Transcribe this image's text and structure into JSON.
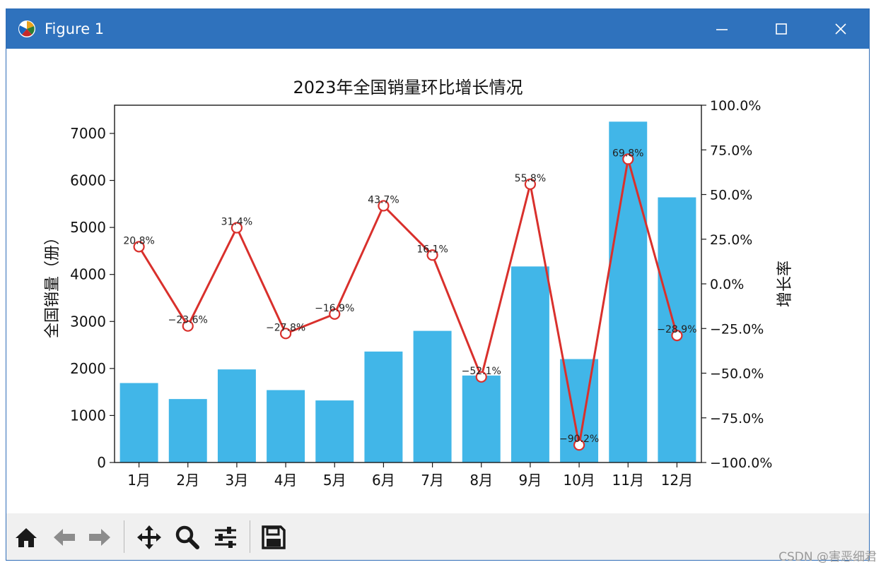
{
  "window": {
    "title": "Figure 1",
    "icons": {
      "app": "matplotlib-icon",
      "minimize": "minimize-icon",
      "maximize": "maximize-icon",
      "close": "close-icon"
    }
  },
  "toolbar": {
    "buttons": [
      {
        "name": "home-icon"
      },
      {
        "name": "back-icon"
      },
      {
        "name": "forward-icon"
      },
      {
        "name": "pan-icon"
      },
      {
        "name": "zoom-icon"
      },
      {
        "name": "configure-subplots-icon"
      },
      {
        "name": "save-icon"
      }
    ]
  },
  "watermark": "CSDN @害恶细君",
  "chart_data": {
    "type": "bar",
    "title": "2023年全国销量环比增长情况",
    "categories": [
      "1月",
      "2月",
      "3月",
      "4月",
      "5月",
      "6月",
      "7月",
      "8月",
      "9月",
      "10月",
      "11月",
      "12月"
    ],
    "ylabel": "全国销量（册）",
    "ylim": [
      0,
      7600
    ],
    "yticks": [
      "0",
      "1000",
      "2000",
      "3000",
      "4000",
      "5000",
      "6000",
      "7000"
    ],
    "y2label": "增长率",
    "y2lim": [
      -100,
      100
    ],
    "y2ticks": [
      "100.0%",
      "75.0%",
      "50.0%",
      "25.0%",
      "0.0%",
      "−25.0%",
      "−50.0%",
      "−75.0%",
      "−100.0%"
    ],
    "series": [
      {
        "type": "bar",
        "axis": "left",
        "values": [
          1690,
          1350,
          1980,
          1540,
          1320,
          2360,
          2800,
          1850,
          4170,
          2200,
          7250,
          5640
        ]
      },
      {
        "type": "line",
        "axis": "right",
        "values": [
          20.8,
          -23.6,
          31.4,
          -27.8,
          -16.9,
          43.7,
          16.1,
          -52.1,
          55.8,
          -90.2,
          69.8,
          -28.9
        ],
        "labels": [
          "20.8%",
          "−23.6%",
          "31.4%",
          "−27.8%",
          "−16.9%",
          "43.7%",
          "16.1%",
          "−52.1%",
          "55.8%",
          "−90.2%",
          "69.8%",
          "−28.9%"
        ]
      }
    ],
    "colors": {
      "bar": "#41b6e8",
      "line": "#d9302c",
      "marker_fill": "#ffffff"
    },
    "grid": false,
    "legend": "none"
  }
}
